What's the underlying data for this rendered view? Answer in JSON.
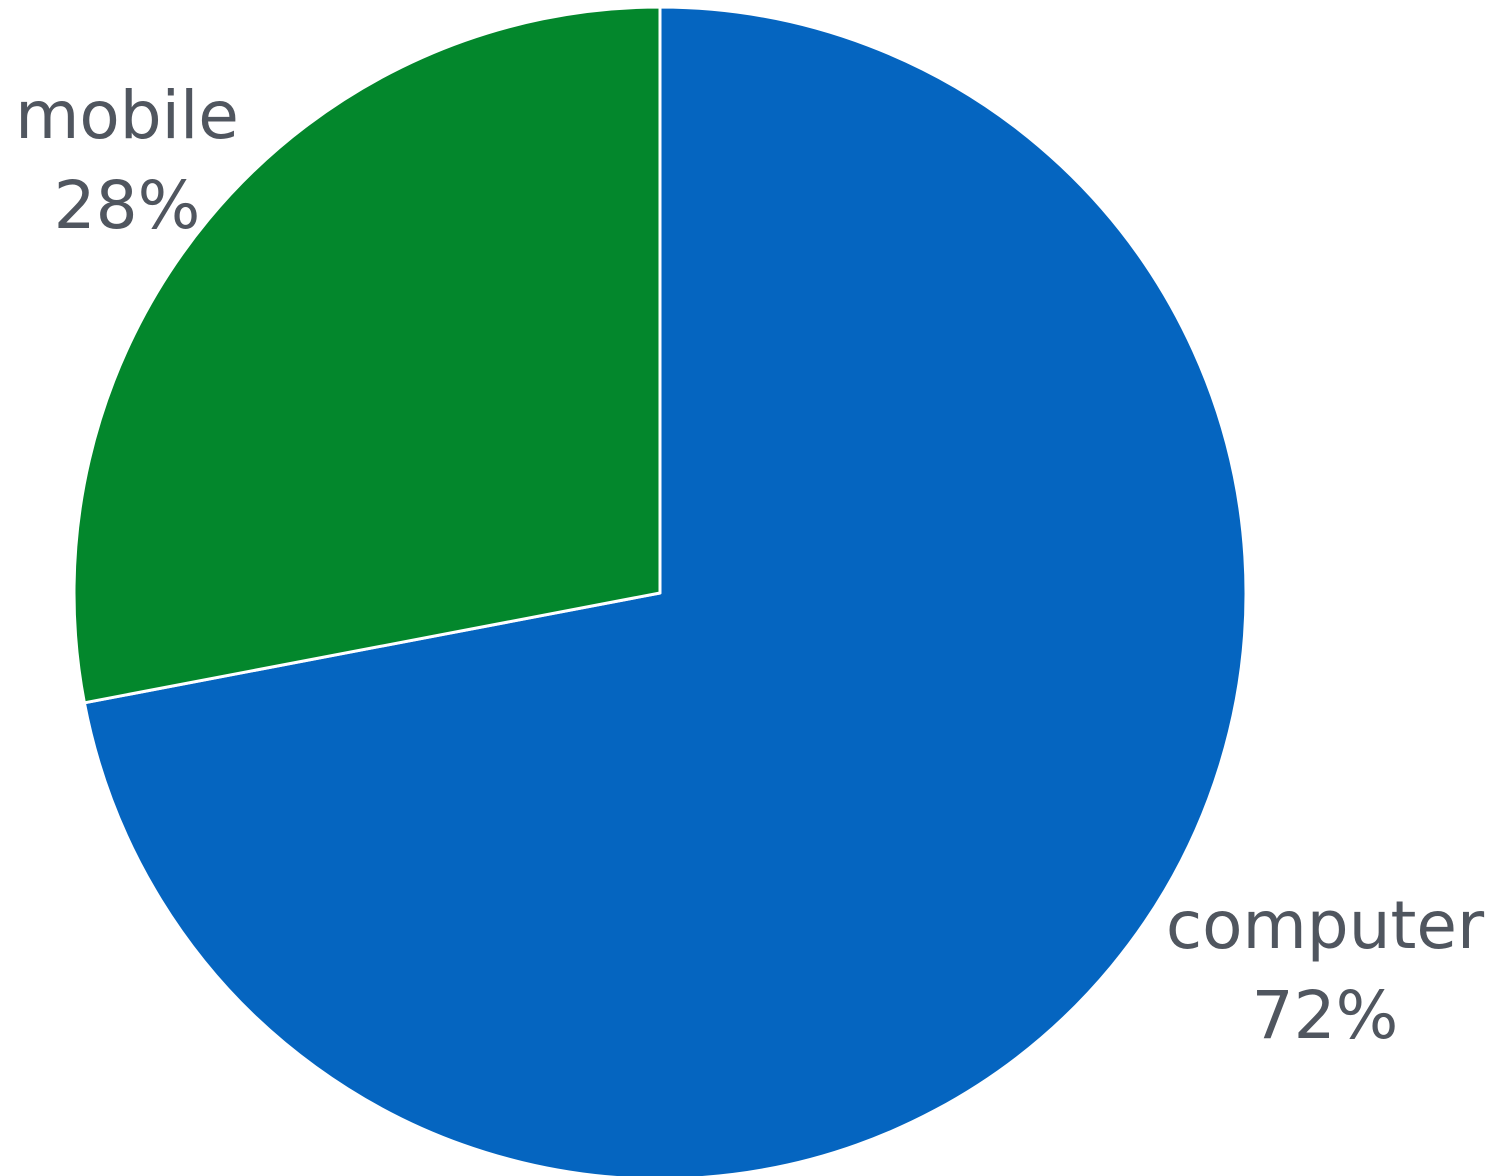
{
  "chart_data": {
    "type": "pie",
    "title": "",
    "start_angle_deg": 0,
    "direction": "clockwise",
    "legend": "none",
    "slices": [
      {
        "label": "computer",
        "value": 72,
        "value_label": "72%",
        "color": "#0565c0"
      },
      {
        "label": "mobile",
        "value": 28,
        "value_label": "28%",
        "color": "#03872c"
      }
    ]
  }
}
